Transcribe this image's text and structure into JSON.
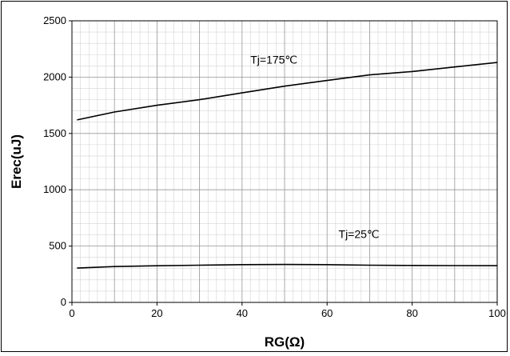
{
  "chart_data": {
    "type": "line",
    "xlabel": "RG(Ω)",
    "ylabel": "Erec(uJ)",
    "xlim": [
      0,
      100
    ],
    "ylim": [
      0,
      2500
    ],
    "x_ticks": [
      0,
      20,
      40,
      60,
      80,
      100
    ],
    "y_ticks": [
      0,
      500,
      1000,
      1500,
      2000,
      2500
    ],
    "grid": true,
    "series": [
      {
        "name": "Tj=175℃",
        "color": "#000000",
        "x": [
          1.2,
          10,
          20,
          30,
          40,
          50,
          60,
          70,
          80,
          90,
          100
        ],
        "y": [
          1620,
          1690,
          1750,
          1800,
          1860,
          1920,
          1970,
          2020,
          2050,
          2090,
          2130
        ]
      },
      {
        "name": "Tj=25℃",
        "color": "#000000",
        "x": [
          1.2,
          10,
          20,
          30,
          40,
          50,
          60,
          70,
          80,
          90,
          100
        ],
        "y": [
          305,
          318,
          325,
          330,
          335,
          337,
          335,
          330,
          328,
          327,
          326
        ]
      }
    ],
    "annotations": [
      {
        "text": "Tj=175℃",
        "x": 47.5,
        "y": 2120
      },
      {
        "text": "Tj=25℃",
        "x": 67.5,
        "y": 570
      }
    ]
  }
}
